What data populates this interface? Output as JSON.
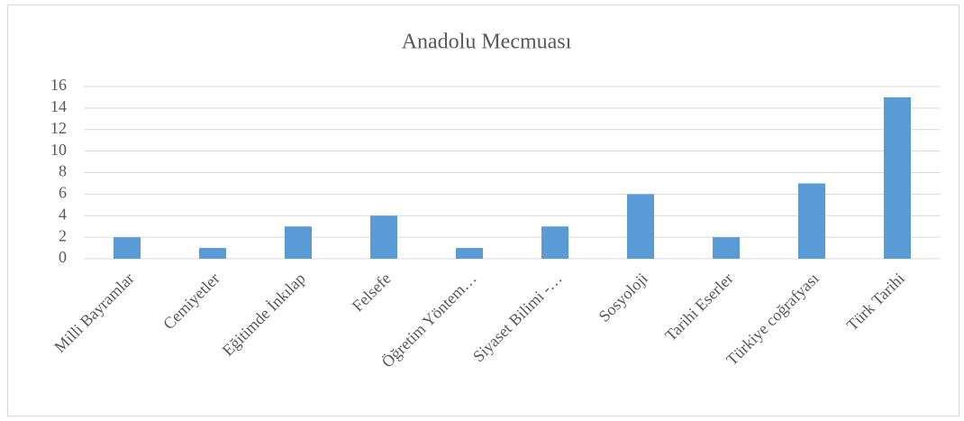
{
  "chart_data": {
    "type": "bar",
    "title": "Anadolu Mecmuası",
    "categories": [
      "Milli Bayramlar",
      "Cemiyetler",
      "Eğitimde İnkılap",
      "Felsefe",
      "Öğretim Yöntem…",
      "Siyaset Bilimi -…",
      "Sosyoloji",
      "Tarihi Eserler",
      "Türkiye coğrafyası",
      "Türk Tarihi"
    ],
    "values": [
      2,
      1,
      3,
      4,
      1,
      3,
      6,
      2,
      7,
      15
    ],
    "color": "#5b9bd5",
    "ylim": [
      0,
      16
    ],
    "yticks": [
      0,
      2,
      4,
      6,
      8,
      10,
      12,
      14,
      16
    ],
    "grid": true
  }
}
